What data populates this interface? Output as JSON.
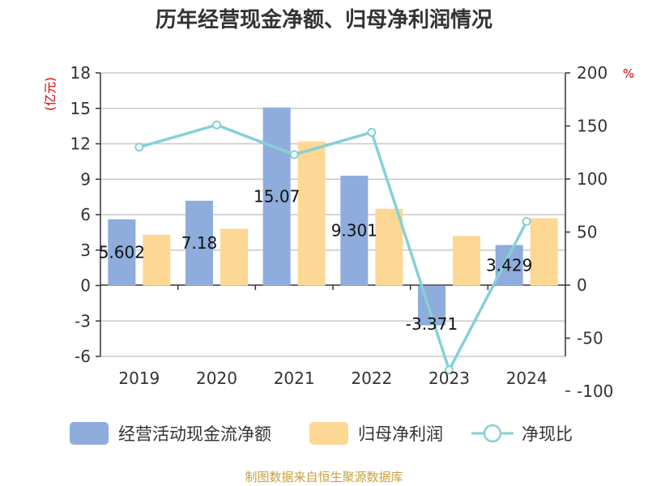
{
  "chart_data": {
    "type": "bar",
    "title": "历年经营现金净额、归母净利润情况",
    "categories": [
      "2019",
      "2020",
      "2021",
      "2022",
      "2023",
      "2024"
    ],
    "series": [
      {
        "name": "经营活动现金流净额",
        "kind": "bar",
        "axis": "left",
        "color": "#8eacdc",
        "values": [
          5.602,
          7.18,
          15.07,
          9.301,
          -3.371,
          3.429
        ],
        "labels": [
          "5.602",
          "7.18",
          "15.07",
          "9.301",
          "-3.371",
          "3.429"
        ]
      },
      {
        "name": "归母净利润",
        "kind": "bar",
        "axis": "left",
        "color": "#fdd794",
        "values": [
          4.3,
          4.8,
          12.2,
          6.5,
          4.2,
          5.7
        ]
      },
      {
        "name": "净现比",
        "kind": "line",
        "axis": "right",
        "color": "#86d0d6",
        "values": [
          130,
          151,
          123,
          144,
          -80,
          60
        ]
      }
    ],
    "y_left": {
      "unit": "(亿元)",
      "ylim": [
        -6,
        18
      ],
      "ticks": [
        "-6",
        "-3",
        "0",
        "3",
        "6",
        "9",
        "12",
        "15",
        "18"
      ]
    },
    "y_right": {
      "unit": "%",
      "ylim": [
        -100,
        200
      ],
      "ticks": [
        "-100",
        "-50",
        "0",
        "50",
        "100",
        "150",
        "200"
      ]
    },
    "grid": true,
    "legend_position": "bottom",
    "source": "制图数据来自恒生聚源数据库"
  }
}
